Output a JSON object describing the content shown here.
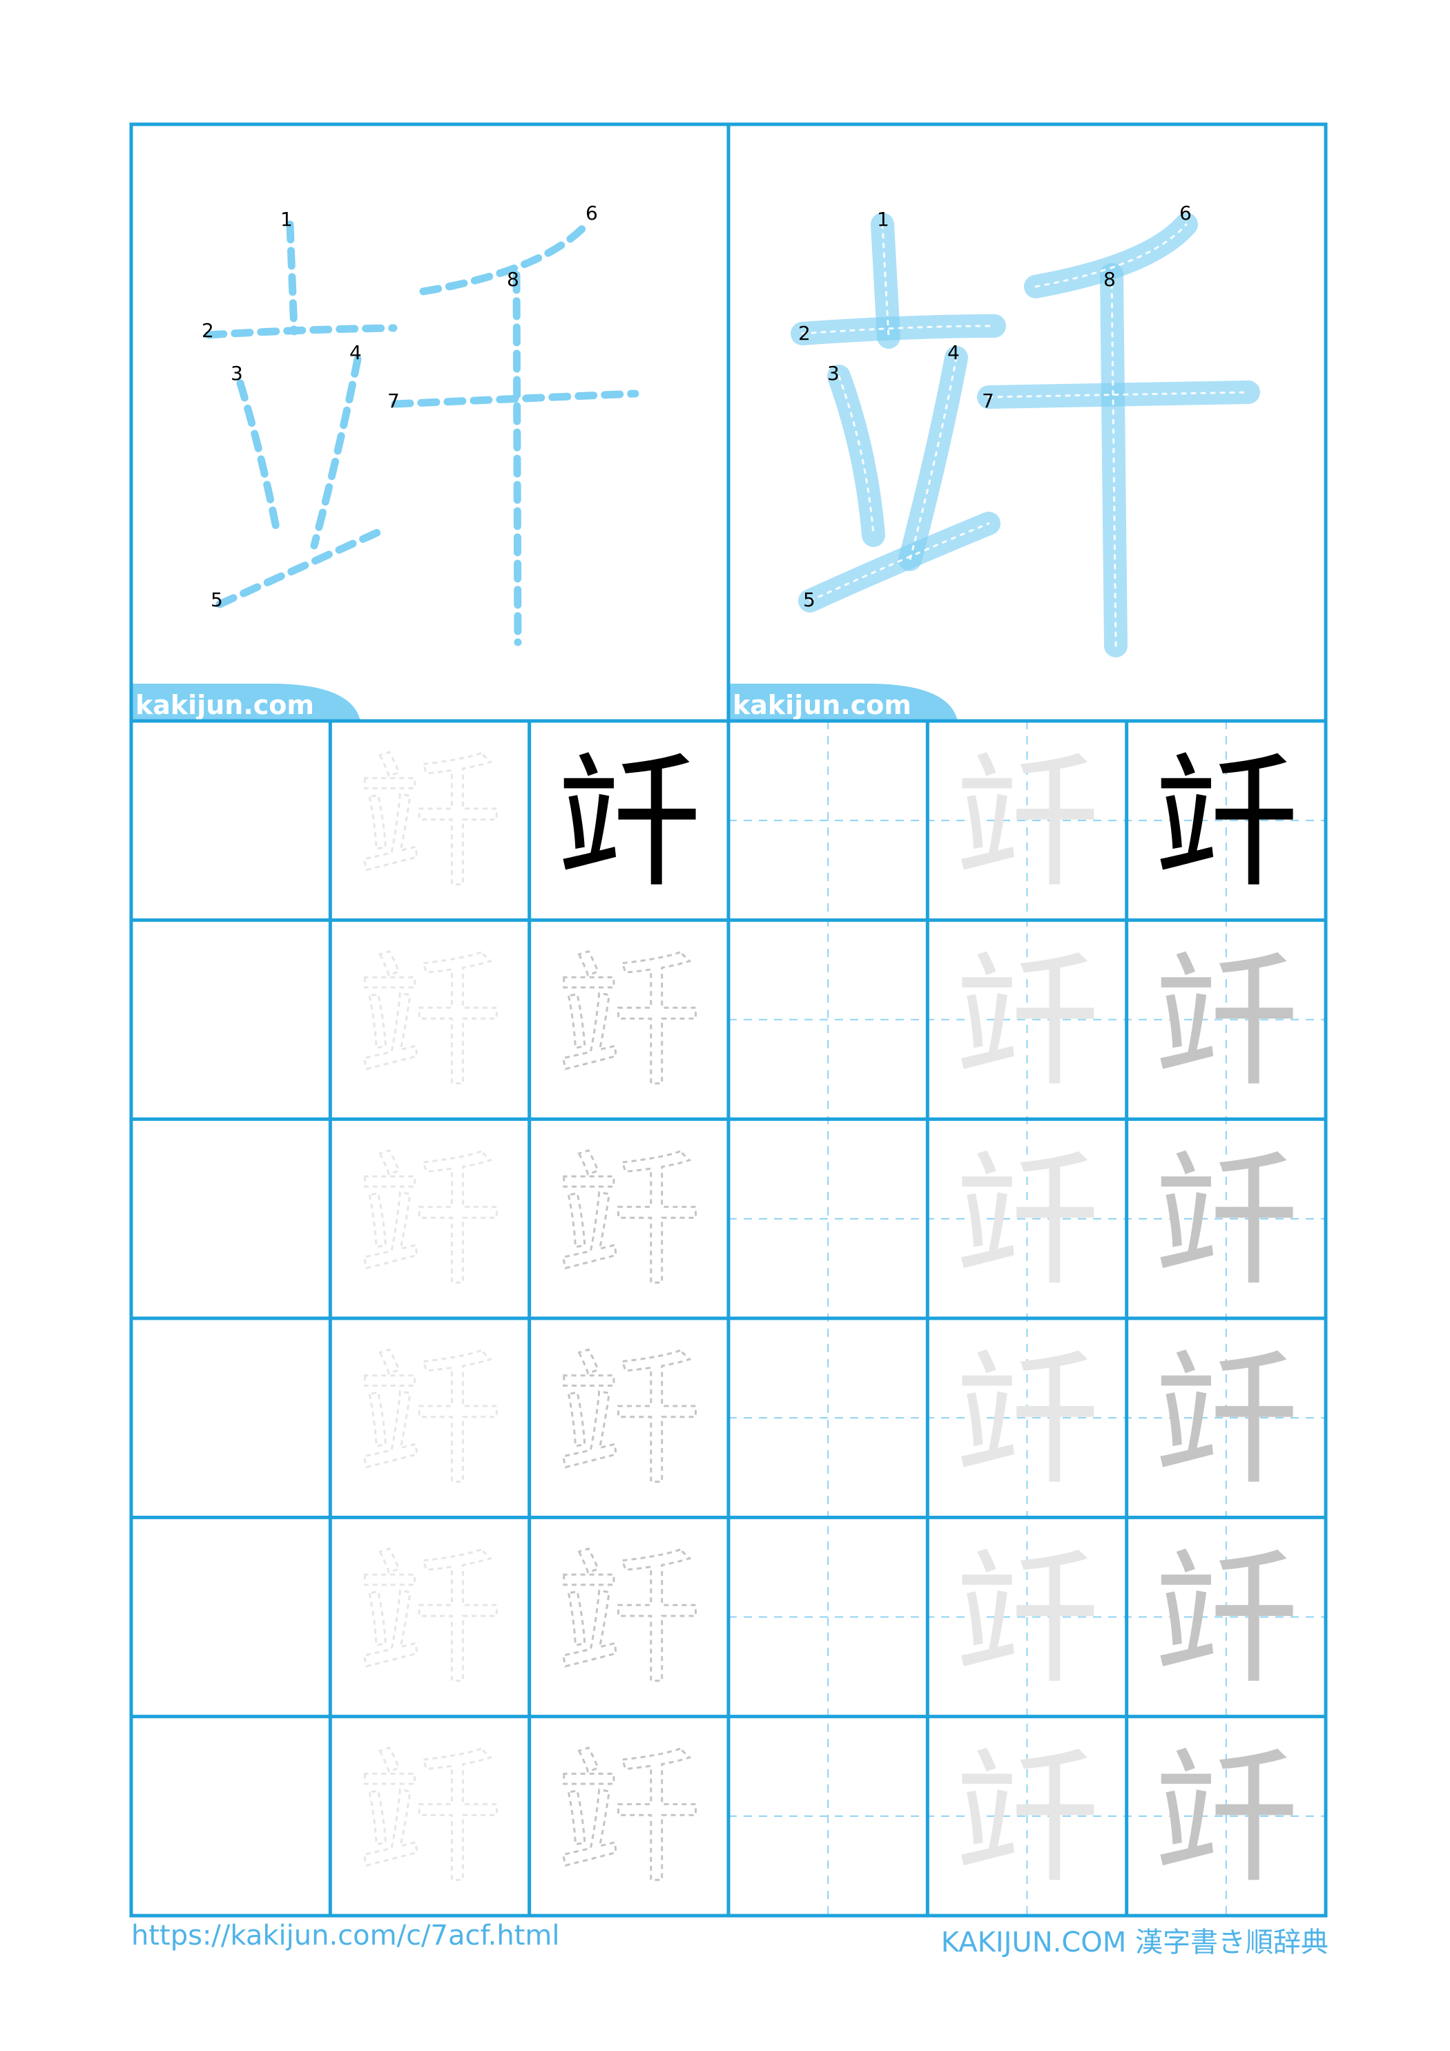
{
  "kanji": "竏",
  "stroke_numbers": [
    "1",
    "2",
    "3",
    "4",
    "5",
    "6",
    "7",
    "8"
  ],
  "watermark": "kakijun.com",
  "footer": {
    "url": "https://kakijun.com/c/7acf.html",
    "brand": "KAKIJUN.COM 漢字書き順辞典"
  },
  "grid": {
    "rows": 6,
    "columns": 6
  },
  "colors": {
    "grid_blue": "#1ea2dc",
    "stroke_blue": "#7fd0f3",
    "guide_blue": "#8fd3f5",
    "solid_char": "#000000",
    "trace_light": "#e6e6e6",
    "trace_mid": "#c4c4c4"
  }
}
